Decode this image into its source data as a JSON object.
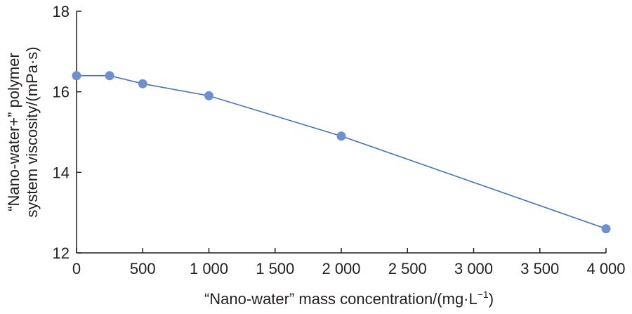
{
  "chart_data": {
    "type": "line",
    "title": "",
    "xlabel": "“Nano-water” mass concentration/(mg·L",
    "xlabel_sup": "−1",
    "xlabel_end": ")",
    "ylabel_lines": [
      "“Nano-water+” polymer",
      "system viscosity/(mPa·s)"
    ],
    "xlim": [
      0,
      4000
    ],
    "ylim": [
      12,
      18
    ],
    "x_ticks": [
      0,
      500,
      1000,
      1500,
      2000,
      2500,
      3000,
      3500,
      4000
    ],
    "x_tick_labels": [
      "0",
      "500",
      "1 000",
      "1 500",
      "2 000",
      "2 500",
      "3 000",
      "3 500",
      "4 000"
    ],
    "y_ticks": [
      12,
      14,
      16,
      18
    ],
    "y_tick_labels": [
      "12",
      "14",
      "16",
      "18"
    ],
    "grid": false,
    "series": [
      {
        "x": [
          0,
          250,
          500,
          1000,
          2000,
          4000
        ],
        "y": [
          16.4,
          16.4,
          16.2,
          15.9,
          14.9,
          12.6
        ],
        "color": "#4472c4",
        "marker_color": "#6f8fcf"
      }
    ]
  }
}
